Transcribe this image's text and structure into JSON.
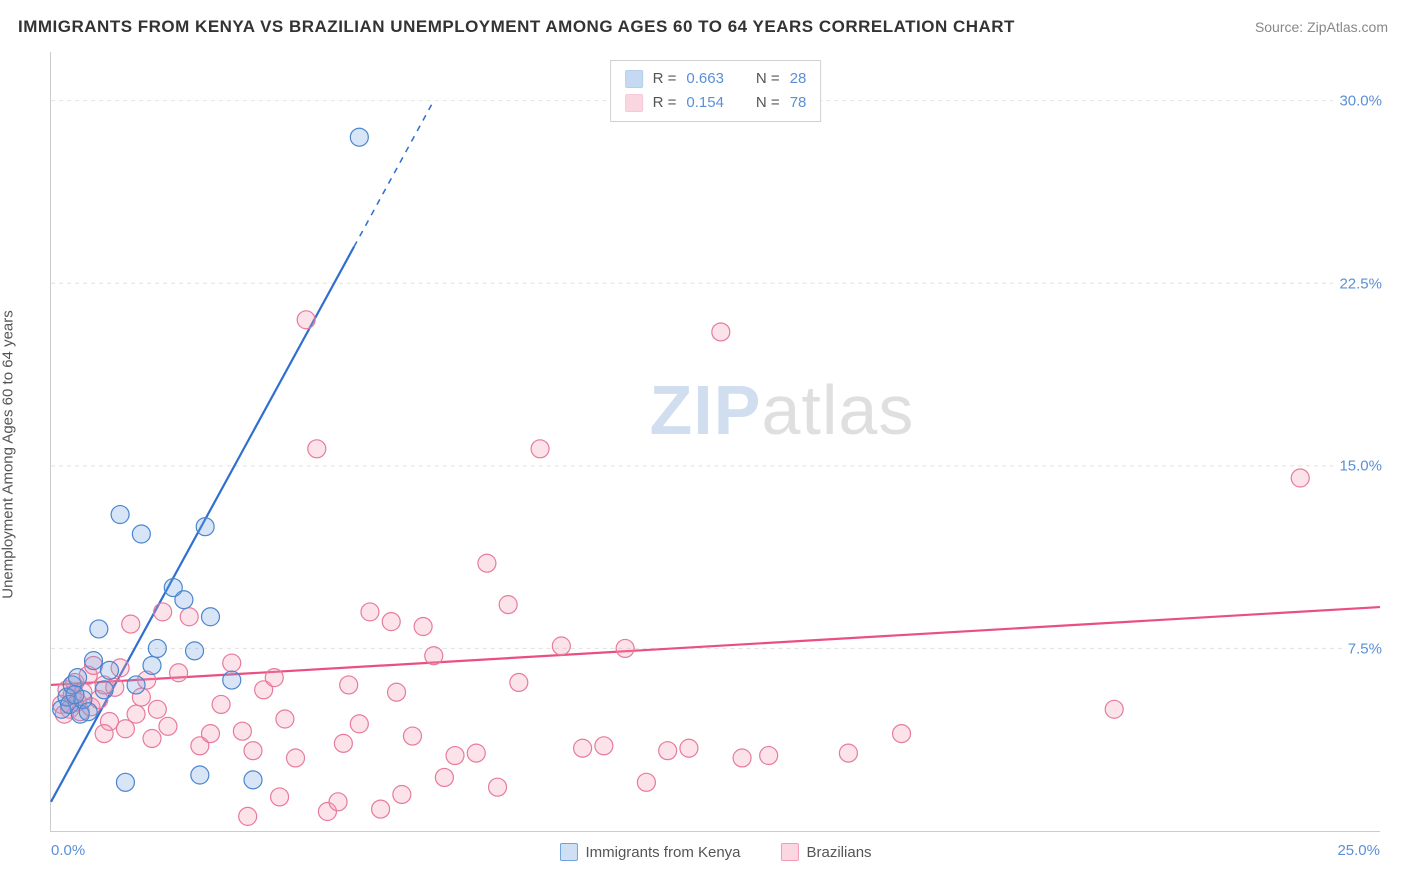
{
  "header": {
    "title": "IMMIGRANTS FROM KENYA VS BRAZILIAN UNEMPLOYMENT AMONG AGES 60 TO 64 YEARS CORRELATION CHART",
    "source": "Source: ZipAtlas.com"
  },
  "ylabel": "Unemployment Among Ages 60 to 64 years",
  "watermark": {
    "part1": "ZIP",
    "part2": "atlas"
  },
  "chart": {
    "type": "scatter",
    "xlim": [
      0,
      25
    ],
    "ylim": [
      0,
      32
    ],
    "x_ticks": [
      0.0,
      25.0
    ],
    "x_tick_labels": [
      "0.0%",
      "25.0%"
    ],
    "y_ticks": [
      7.5,
      15.0,
      22.5,
      30.0
    ],
    "y_tick_labels": [
      "7.5%",
      "15.0%",
      "22.5%",
      "30.0%"
    ],
    "grid_color": "#e0e0e0",
    "axis_color": "#cccccc",
    "tick_label_color": "#5b8fd6",
    "background_color": "#ffffff",
    "marker_radius": 9,
    "marker_stroke_width": 1.2,
    "marker_fill_opacity": 0.28,
    "series": [
      {
        "name": "Immigrants from Kenya",
        "color": "#6fa3e0",
        "stroke": "#4a86d0",
        "r_label": "R =",
        "r_value": "0.663",
        "n_label": "N =",
        "n_value": "28",
        "trend": {
          "x1": 0.0,
          "y1": 1.2,
          "x2": 7.2,
          "y2": 30.0,
          "solid_until_x": 5.7,
          "color": "#2f6fd0",
          "width": 2.2
        },
        "points": [
          [
            0.2,
            5.0
          ],
          [
            0.3,
            5.5
          ],
          [
            0.4,
            6.0
          ],
          [
            0.35,
            5.2
          ],
          [
            0.5,
            6.3
          ],
          [
            0.55,
            4.8
          ],
          [
            0.6,
            5.4
          ],
          [
            0.8,
            7.0
          ],
          [
            0.9,
            8.3
          ],
          [
            1.0,
            5.8
          ],
          [
            1.1,
            6.6
          ],
          [
            1.3,
            13.0
          ],
          [
            1.6,
            6.0
          ],
          [
            1.7,
            12.2
          ],
          [
            1.9,
            6.8
          ],
          [
            2.0,
            7.5
          ],
          [
            2.3,
            10.0
          ],
          [
            2.5,
            9.5
          ],
          [
            2.7,
            7.4
          ],
          [
            2.9,
            12.5
          ],
          [
            3.0,
            8.8
          ],
          [
            3.4,
            6.2
          ],
          [
            1.4,
            2.0
          ],
          [
            2.8,
            2.3
          ],
          [
            3.8,
            2.1
          ],
          [
            0.7,
            4.9
          ],
          [
            0.45,
            5.6
          ],
          [
            5.8,
            28.5
          ]
        ]
      },
      {
        "name": "Brazilians",
        "color": "#f49ab5",
        "stroke": "#e77a9d",
        "r_label": "R =",
        "r_value": "0.154",
        "n_label": "N =",
        "n_value": "78",
        "trend": {
          "x1": 0.0,
          "y1": 6.0,
          "x2": 25.0,
          "y2": 9.2,
          "solid_until_x": 25.0,
          "color": "#e94f80",
          "width": 2.2
        },
        "points": [
          [
            0.2,
            5.2
          ],
          [
            0.3,
            5.8
          ],
          [
            0.35,
            5.0
          ],
          [
            0.4,
            5.6
          ],
          [
            0.45,
            6.1
          ],
          [
            0.5,
            5.3
          ],
          [
            0.55,
            4.9
          ],
          [
            0.6,
            5.7
          ],
          [
            0.7,
            6.4
          ],
          [
            0.75,
            5.1
          ],
          [
            0.8,
            6.8
          ],
          [
            0.9,
            5.4
          ],
          [
            1.0,
            6.0
          ],
          [
            1.1,
            4.5
          ],
          [
            1.2,
            5.9
          ],
          [
            1.3,
            6.7
          ],
          [
            1.4,
            4.2
          ],
          [
            1.5,
            8.5
          ],
          [
            1.6,
            4.8
          ],
          [
            1.7,
            5.5
          ],
          [
            1.8,
            6.2
          ],
          [
            1.9,
            3.8
          ],
          [
            2.0,
            5.0
          ],
          [
            2.2,
            4.3
          ],
          [
            2.4,
            6.5
          ],
          [
            2.6,
            8.8
          ],
          [
            2.8,
            3.5
          ],
          [
            3.0,
            4.0
          ],
          [
            3.2,
            5.2
          ],
          [
            3.4,
            6.9
          ],
          [
            3.6,
            4.1
          ],
          [
            3.8,
            3.3
          ],
          [
            4.0,
            5.8
          ],
          [
            4.2,
            6.3
          ],
          [
            4.4,
            4.6
          ],
          [
            4.6,
            3.0
          ],
          [
            4.8,
            21.0
          ],
          [
            5.0,
            15.7
          ],
          [
            5.2,
            0.8
          ],
          [
            5.4,
            1.2
          ],
          [
            5.6,
            6.0
          ],
          [
            5.8,
            4.4
          ],
          [
            6.0,
            9.0
          ],
          [
            6.2,
            0.9
          ],
          [
            6.4,
            8.6
          ],
          [
            6.6,
            1.5
          ],
          [
            6.8,
            3.9
          ],
          [
            7.0,
            8.4
          ],
          [
            7.2,
            7.2
          ],
          [
            7.6,
            3.1
          ],
          [
            8.0,
            3.2
          ],
          [
            8.2,
            11.0
          ],
          [
            8.4,
            1.8
          ],
          [
            8.6,
            9.3
          ],
          [
            8.8,
            6.1
          ],
          [
            9.2,
            15.7
          ],
          [
            9.6,
            7.6
          ],
          [
            10.0,
            3.4
          ],
          [
            10.4,
            3.5
          ],
          [
            10.8,
            7.5
          ],
          [
            11.2,
            2.0
          ],
          [
            11.6,
            3.3
          ],
          [
            12.0,
            3.4
          ],
          [
            12.6,
            20.5
          ],
          [
            13.0,
            3.0
          ],
          [
            13.5,
            3.1
          ],
          [
            15.0,
            3.2
          ],
          [
            16.0,
            4.0
          ],
          [
            20.0,
            5.0
          ],
          [
            23.5,
            14.5
          ],
          [
            3.7,
            0.6
          ],
          [
            4.3,
            1.4
          ],
          [
            5.5,
            3.6
          ],
          [
            6.5,
            5.7
          ],
          [
            7.4,
            2.2
          ],
          [
            2.1,
            9.0
          ],
          [
            1.0,
            4.0
          ],
          [
            0.25,
            4.8
          ]
        ]
      }
    ],
    "legend_bottom": [
      {
        "label": "Immigrants from Kenya",
        "fill": "#cfe0f5",
        "stroke": "#6fa3e0"
      },
      {
        "label": "Brazilians",
        "fill": "#fbd7e2",
        "stroke": "#f49ab5"
      }
    ]
  }
}
